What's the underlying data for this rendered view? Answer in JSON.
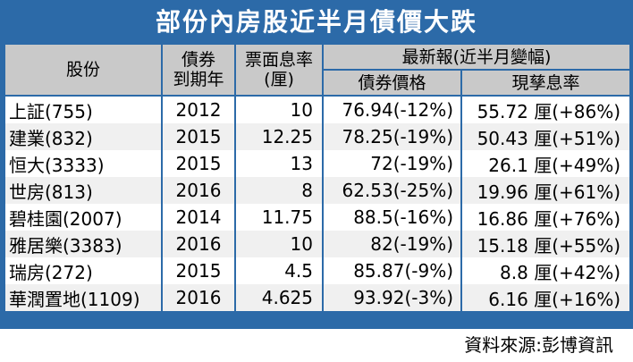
{
  "title": "部份內房股近半月債價大跌",
  "headers": {
    "stock": "股份",
    "maturity_line1": "債券",
    "maturity_line2": "到期年",
    "coupon_line1": "票面息率",
    "coupon_line2": "(厘)",
    "latest": "最新報(近半月變幅)",
    "bond_price": "債券價格",
    "current_yield": "現孳息率"
  },
  "rows": [
    {
      "name": "上証(755)",
      "year": "2012",
      "coupon": "10",
      "price": "76.94(-12%)",
      "yield": "55.72 厘(+86%)"
    },
    {
      "name": "建業(832)",
      "year": "2015",
      "coupon": "12.25",
      "price": "78.25(-19%)",
      "yield": "50.43 厘(+51%)"
    },
    {
      "name": "恒大(3333)",
      "year": "2015",
      "coupon": "13",
      "price": "72(-19%)",
      "yield": "26.1 厘(+49%)"
    },
    {
      "name": "世房(813)",
      "year": "2016",
      "coupon": "8",
      "price": "62.53(-25%)",
      "yield": "19.96 厘(+61%)"
    },
    {
      "name": "碧桂園(2007)",
      "year": "2014",
      "coupon": "11.75",
      "price": "88.5(-16%)",
      "yield": "16.86 厘(+76%)"
    },
    {
      "name": "雅居樂(3383)",
      "year": "2016",
      "coupon": "10",
      "price": "82(-19%)",
      "yield": "15.18 厘(+55%)"
    },
    {
      "name": "瑞房(272)",
      "year": "2015",
      "coupon": "4.5",
      "price": "85.87(-9%)",
      "yield": "8.8 厘(+42%)"
    },
    {
      "name": "華潤置地(1109)",
      "year": "2016",
      "coupon": "4.625",
      "price": "93.92(-3%)",
      "yield": "6.16 厘(+16%)"
    }
  ],
  "source": "資料來源:彭博資訊"
}
